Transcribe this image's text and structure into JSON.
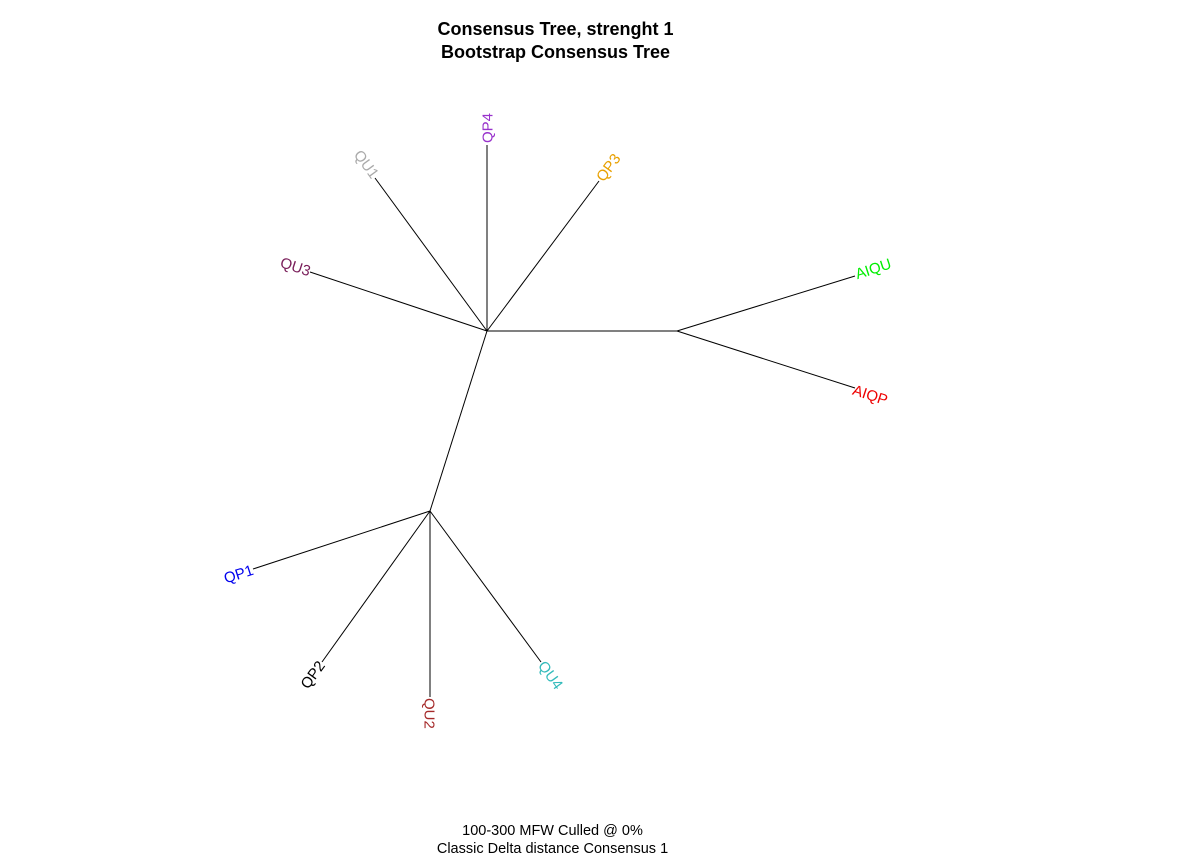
{
  "title": {
    "line1": "Consensus Tree, strenght 1",
    "line2": "Bootstrap Consensus Tree"
  },
  "footer": {
    "line1": "100-300 MFW  Culled @ 0%",
    "line2": "Classic Delta distance Consensus 1"
  },
  "tree": {
    "type": "unrooted",
    "tips": [
      {
        "id": "QP4",
        "label": "QP4",
        "color": "#9933CC"
      },
      {
        "id": "QP3",
        "label": "QP3",
        "color": "#E8A000"
      },
      {
        "id": "QU1",
        "label": "QU1",
        "color": "#AAAAAA"
      },
      {
        "id": "QU3",
        "label": "QU3",
        "color": "#7A1E5A"
      },
      {
        "id": "AIQU",
        "label": "AIQU",
        "color": "#00EE00"
      },
      {
        "id": "AIQP",
        "label": "AIQP",
        "color": "#EE0000"
      },
      {
        "id": "QP1",
        "label": "QP1",
        "color": "#0000EE"
      },
      {
        "id": "QP2",
        "label": "QP2",
        "color": "#000000"
      },
      {
        "id": "QU2",
        "label": "QU2",
        "color": "#A52A2A"
      },
      {
        "id": "QU4",
        "label": "QU4",
        "color": "#33BBBB"
      }
    ]
  }
}
